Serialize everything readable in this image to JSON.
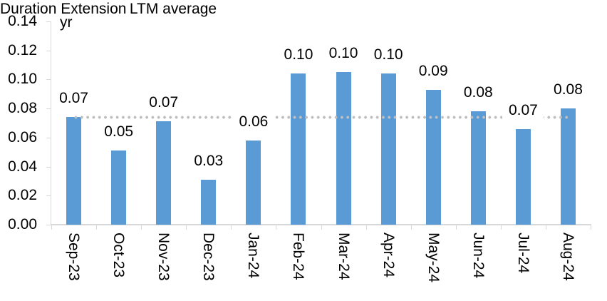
{
  "chart_data": {
    "type": "bar",
    "title": "",
    "unit_label": "yr",
    "categories": [
      "Sep-23",
      "Oct-23",
      "Nov-23",
      "Dec-23",
      "Jan-24",
      "Feb-24",
      "Mar-24",
      "Apr-24",
      "May-24",
      "Jun-24",
      "Jul-24",
      "Aug-24"
    ],
    "series": [
      {
        "name": "Duration Extension",
        "type": "bar",
        "color": "#5B9BD5",
        "values": [
          0.074,
          0.051,
          0.071,
          0.031,
          0.058,
          0.104,
          0.105,
          0.104,
          0.093,
          0.078,
          0.066,
          0.08
        ],
        "data_labels": [
          "0.07",
          "0.05",
          "0.07",
          "0.03",
          "0.06",
          "0.10",
          "0.10",
          "0.10",
          "0.09",
          "0.08",
          "0.07",
          "0.08"
        ]
      },
      {
        "name": "LTM average",
        "type": "line",
        "line_style": "dotted",
        "color": "#BFBFBF",
        "value": 0.074
      }
    ],
    "ylim": [
      0,
      0.14
    ],
    "ytick_step": 0.02,
    "ytick_labels_top_to_bottom": [
      "0.14",
      "0.12",
      "0.10",
      "0.08",
      "0.06",
      "0.04",
      "0.02",
      "0.00"
    ],
    "grid": false,
    "legend_position": "top-center",
    "axis_color": "#D9D9D9",
    "text_color": "#000000",
    "background_color": "#FFFFFF"
  }
}
